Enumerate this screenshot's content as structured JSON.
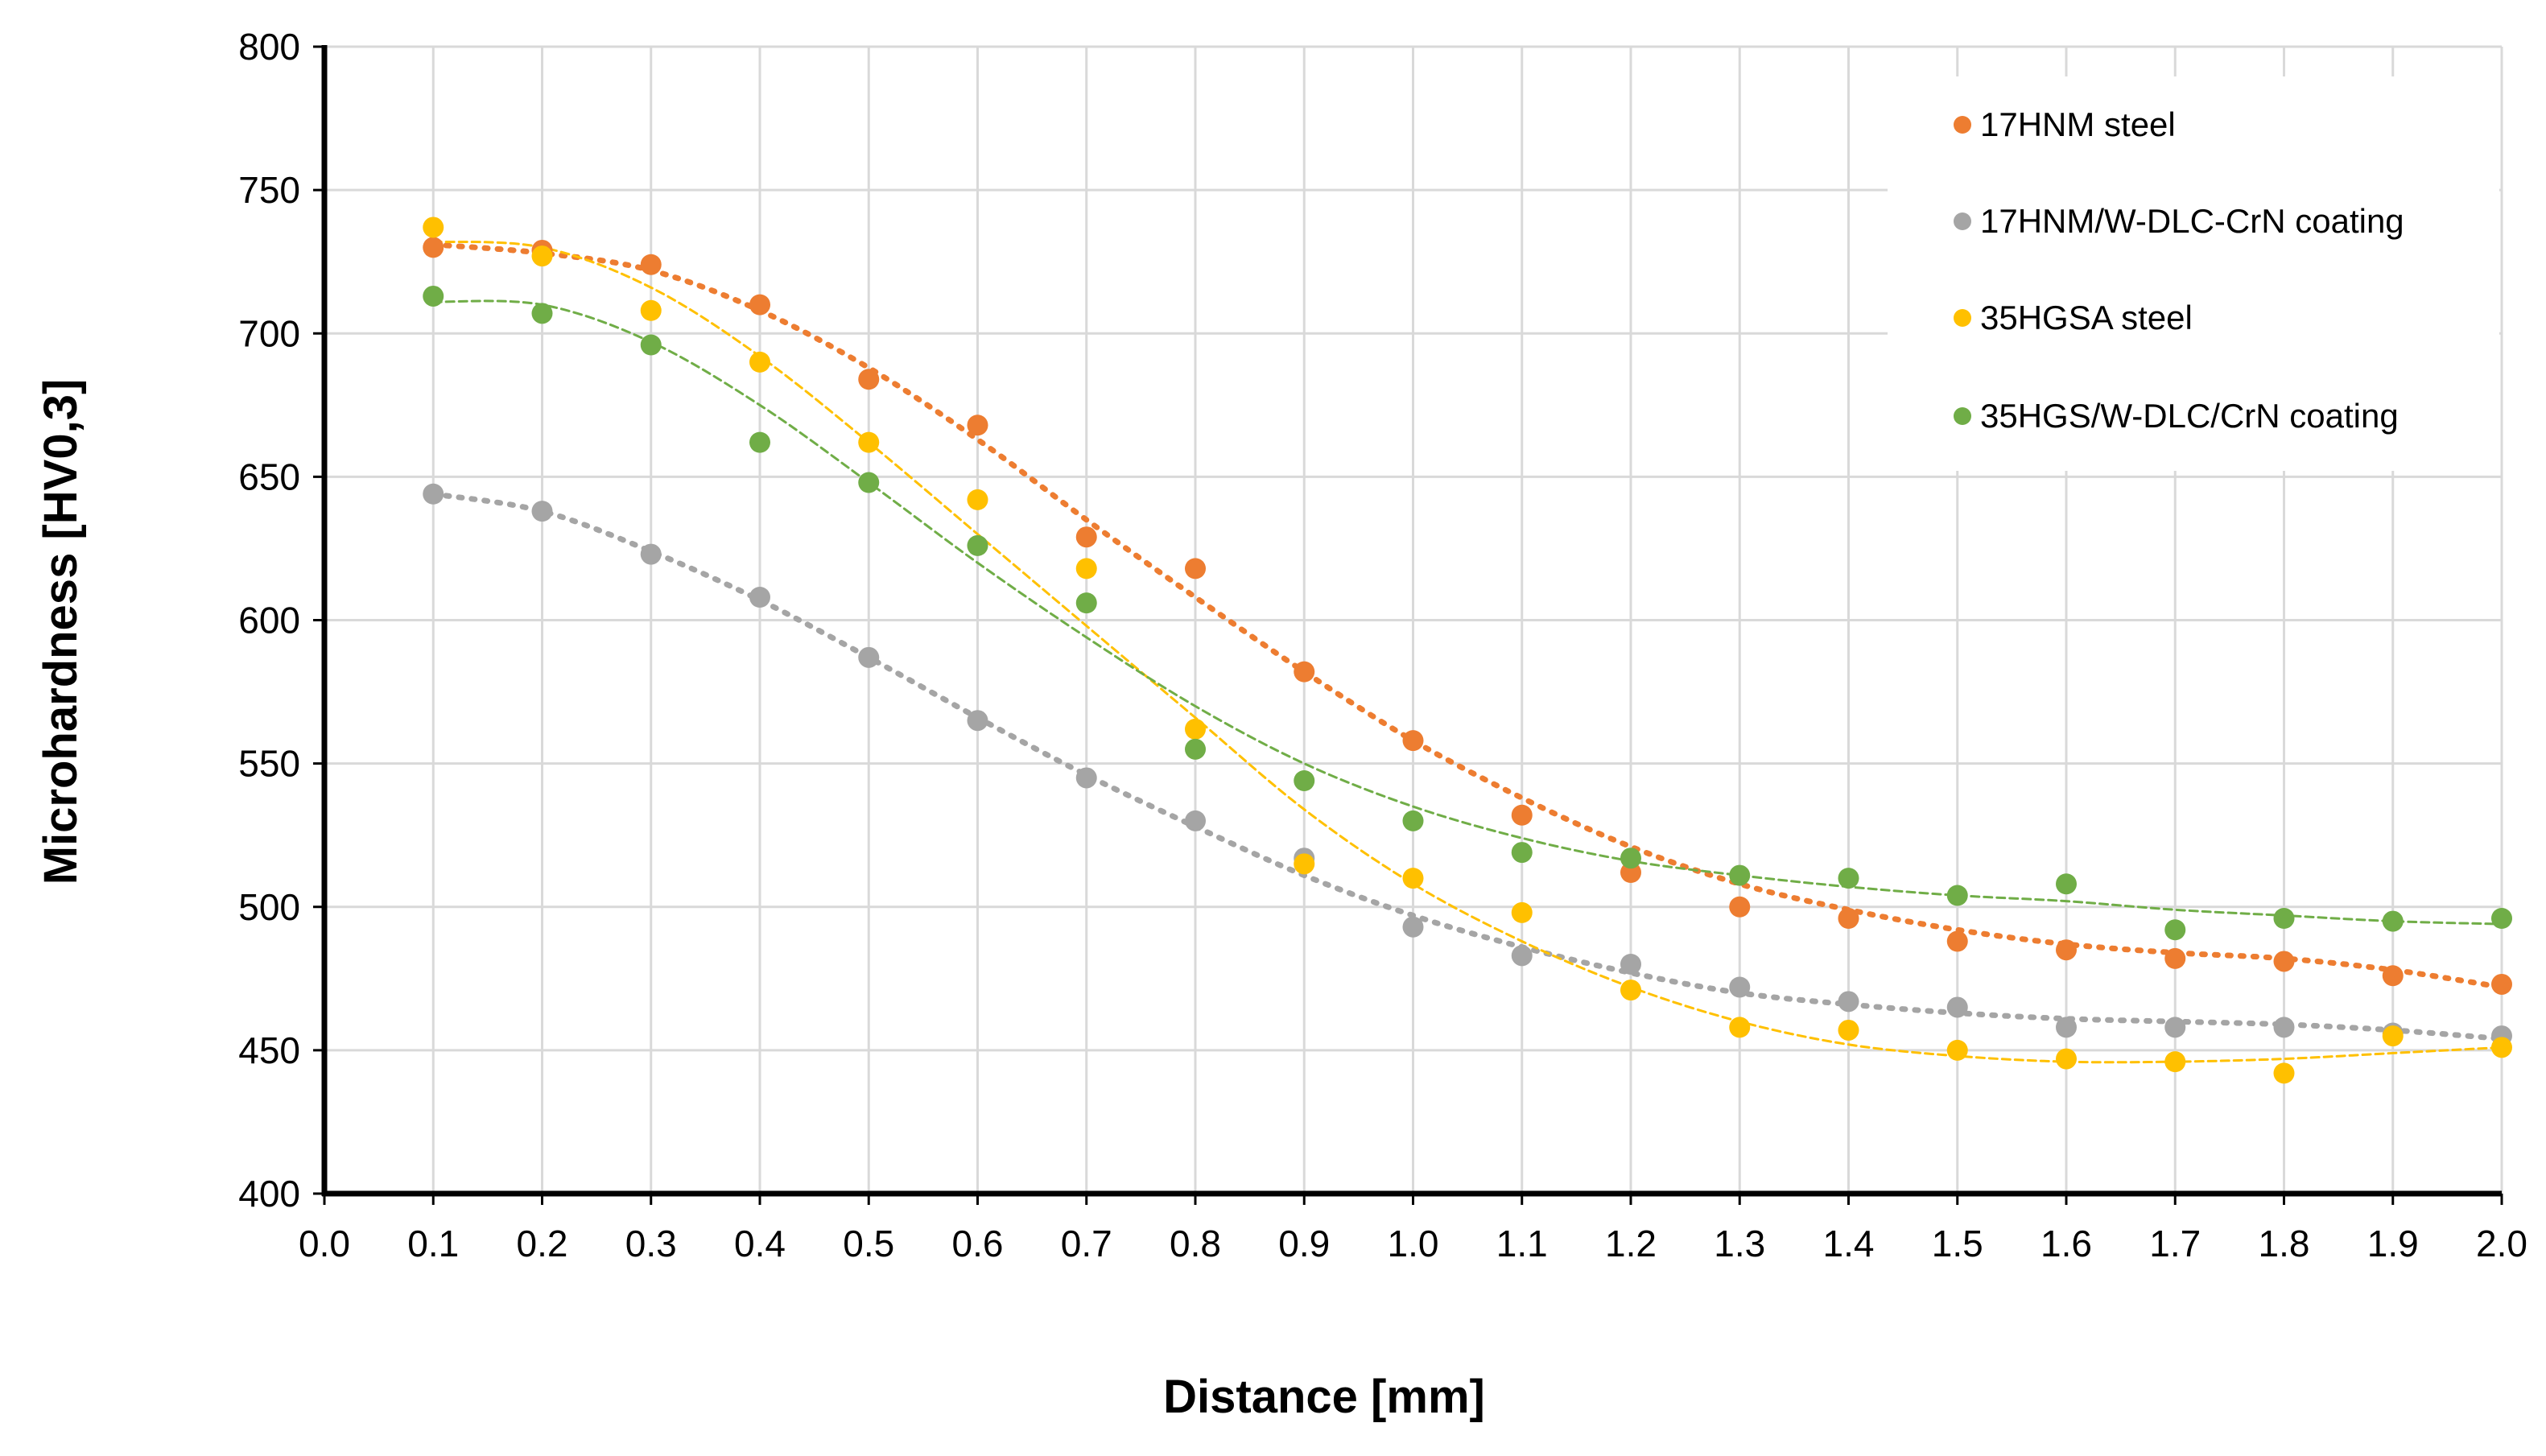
{
  "chart_data": {
    "type": "scatter",
    "title": "",
    "xlabel": "Distance [mm]",
    "ylabel": "Microhardness [HV0,3]",
    "xlim": [
      0.0,
      2.0
    ],
    "ylim": [
      400,
      800
    ],
    "xticks": [
      "0.0",
      "0.1",
      "0.2",
      "0.3",
      "0.4",
      "0.5",
      "0.6",
      "0.7",
      "0.8",
      "0.9",
      "1.0",
      "1.1",
      "1.2",
      "1.3",
      "1.4",
      "1.5",
      "1.6",
      "1.7",
      "1.8",
      "1.9",
      "2.0"
    ],
    "yticks": [
      "400",
      "450",
      "500",
      "550",
      "600",
      "650",
      "700",
      "750",
      "800"
    ],
    "grid": true,
    "legend_position": "top-right",
    "x": [
      0.1,
      0.2,
      0.3,
      0.4,
      0.5,
      0.6,
      0.7,
      0.8,
      0.9,
      1.0,
      1.1,
      1.2,
      1.3,
      1.4,
      1.5,
      1.6,
      1.7,
      1.8,
      1.9,
      2.0
    ],
    "series": [
      {
        "name": "17HNM steel",
        "color": "#ED7D31",
        "values": [
          730,
          729,
          724,
          710,
          684,
          668,
          629,
          618,
          582,
          558,
          532,
          512,
          500,
          496,
          488,
          485,
          482,
          481,
          476,
          473
        ],
        "trend": [
          731,
          728,
          722,
          708,
          688,
          663,
          635,
          608,
          582,
          558,
          538,
          521,
          508,
          499,
          492,
          487,
          484,
          482,
          478,
          472
        ]
      },
      {
        "name": "17HNM/W-DLC-CrN coating",
        "color": "#A5A5A5",
        "values": [
          644,
          638,
          623,
          608,
          587,
          565,
          545,
          530,
          517,
          493,
          483,
          480,
          472,
          467,
          465,
          458,
          458,
          458,
          456,
          455
        ],
        "trend": [
          644,
          638,
          624,
          607,
          587,
          566,
          546,
          528,
          511,
          497,
          486,
          477,
          470,
          466,
          463,
          461,
          460,
          459,
          457,
          454
        ]
      },
      {
        "name": "35HGSA steel",
        "color": "#FFC000",
        "values": [
          737,
          727,
          708,
          690,
          662,
          642,
          618,
          562,
          515,
          510,
          498,
          471,
          458,
          457,
          450,
          447,
          446,
          442,
          455,
          451
        ],
        "trend": [
          732,
          730,
          716,
          692,
          662,
          630,
          598,
          566,
          534,
          508,
          488,
          472,
          460,
          452,
          448,
          446,
          446,
          447,
          449,
          451
        ]
      },
      {
        "name": "35HGS/W-DLC/CrN coating",
        "color": "#70AD47",
        "values": [
          713,
          707,
          696,
          662,
          648,
          626,
          606,
          555,
          544,
          530,
          519,
          517,
          511,
          510,
          504,
          508,
          492,
          496,
          495,
          496
        ],
        "trend": [
          711,
          710,
          697,
          675,
          648,
          620,
          594,
          570,
          550,
          535,
          524,
          516,
          511,
          507,
          504,
          502,
          499,
          497,
          495,
          494
        ]
      }
    ]
  }
}
